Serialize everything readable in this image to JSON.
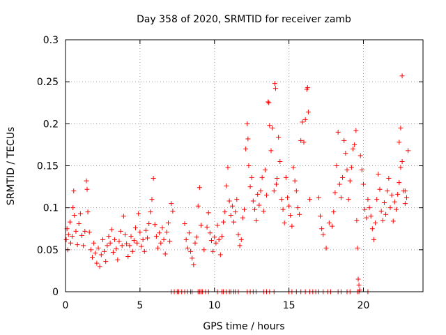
{
  "chart_data": {
    "type": "scatter",
    "title": "Day 358 of 2020, SRMTID for receiver zamb",
    "xlabel": "GPS time / hours",
    "ylabel": "SRMTID / TECUs",
    "xlim": [
      0,
      24
    ],
    "ylim": [
      0,
      0.3
    ],
    "grid": true,
    "marker": "+",
    "x_ticks": [
      {
        "value": 0,
        "label": "0"
      },
      {
        "value": 5,
        "label": "5"
      },
      {
        "value": 10,
        "label": "10"
      },
      {
        "value": 15,
        "label": "15"
      },
      {
        "value": 20,
        "label": "20"
      }
    ],
    "y_ticks": [
      {
        "value": 0,
        "label": "0"
      },
      {
        "value": 0.05,
        "label": "0.05"
      },
      {
        "value": 0.1,
        "label": "0.1"
      },
      {
        "value": 0.15,
        "label": "0.15"
      },
      {
        "value": 0.2,
        "label": "0.2"
      },
      {
        "value": 0.25,
        "label": "0.25"
      },
      {
        "value": 0.3,
        "label": "0.3"
      }
    ],
    "series": [
      {
        "name": "SRMTID",
        "color": "#ff0000",
        "points": [
          [
            0.05,
            0.062
          ],
          [
            0.1,
            0.075
          ],
          [
            0.15,
            0.05
          ],
          [
            0.2,
            0.068
          ],
          [
            0.3,
            0.083
          ],
          [
            0.35,
            0.058
          ],
          [
            0.45,
            0.066
          ],
          [
            0.5,
            0.1
          ],
          [
            0.55,
            0.12
          ],
          [
            0.6,
            0.091
          ],
          [
            0.7,
            0.072
          ],
          [
            0.8,
            0.056
          ],
          [
            0.9,
            0.081
          ],
          [
            1.0,
            0.093
          ],
          [
            1.1,
            0.067
          ],
          [
            1.2,
            0.055
          ],
          [
            1.3,
            0.072
          ],
          [
            1.4,
            0.132
          ],
          [
            1.45,
            0.122
          ],
          [
            1.5,
            0.095
          ],
          [
            1.6,
            0.071
          ],
          [
            1.7,
            0.05
          ],
          [
            1.8,
            0.041
          ],
          [
            1.9,
            0.058
          ],
          [
            2.0,
            0.046
          ],
          [
            2.1,
            0.034
          ],
          [
            2.2,
            0.052
          ],
          [
            2.3,
            0.03
          ],
          [
            2.4,
            0.044
          ],
          [
            2.5,
            0.062
          ],
          [
            2.6,
            0.048
          ],
          [
            2.7,
            0.036
          ],
          [
            2.8,
            0.055
          ],
          [
            2.9,
            0.066
          ],
          [
            3.0,
            0.058
          ],
          [
            3.1,
            0.074
          ],
          [
            3.2,
            0.047
          ],
          [
            3.3,
            0.062
          ],
          [
            3.4,
            0.051
          ],
          [
            3.5,
            0.038
          ],
          [
            3.6,
            0.06
          ],
          [
            3.7,
            0.072
          ],
          [
            3.8,
            0.055
          ],
          [
            3.9,
            0.09
          ],
          [
            4.0,
            0.068
          ],
          [
            4.1,
            0.057
          ],
          [
            4.2,
            0.042
          ],
          [
            4.3,
            0.055
          ],
          [
            4.4,
            0.066
          ],
          [
            4.5,
            0.048
          ],
          [
            4.6,
            0.061
          ],
          [
            4.7,
            0.076
          ],
          [
            4.8,
            0.058
          ],
          [
            4.9,
            0.093
          ],
          [
            5.0,
            0.071
          ],
          [
            5.1,
            0.054
          ],
          [
            5.2,
            0.062
          ],
          [
            5.3,
            0.048
          ],
          [
            5.4,
            0.073
          ],
          [
            5.5,
            0.064
          ],
          [
            5.6,
            0.081
          ],
          [
            5.7,
            0.095
          ],
          [
            5.8,
            0.11
          ],
          [
            5.9,
            0.135
          ],
          [
            6.0,
            0.08
          ],
          [
            6.1,
            0.066
          ],
          [
            6.2,
            0.052
          ],
          [
            6.3,
            0.07
          ],
          [
            6.4,
            0.058
          ],
          [
            6.5,
            0.076
          ],
          [
            6.6,
            0.062
          ],
          [
            6.7,
            0.045
          ],
          [
            6.8,
            0.071
          ],
          [
            6.9,
            0.082
          ],
          [
            7.0,
            0.06
          ],
          [
            7.1,
            0.105
          ],
          [
            7.2,
            0.096
          ],
          [
            8.0,
            0.081
          ],
          [
            8.1,
            0.062
          ],
          [
            8.2,
            0.052
          ],
          [
            8.3,
            0.07
          ],
          [
            8.4,
            0.048
          ],
          [
            8.5,
            0.04
          ],
          [
            8.6,
            0.032
          ],
          [
            8.7,
            0.058
          ],
          [
            8.8,
            0.065
          ],
          [
            8.9,
            0.102
          ],
          [
            9.0,
            0.124
          ],
          [
            9.1,
            0.079
          ],
          [
            9.3,
            0.05
          ],
          [
            9.5,
            0.077
          ],
          [
            9.6,
            0.094
          ],
          [
            9.7,
            0.07
          ],
          [
            9.8,
            0.061
          ],
          [
            9.9,
            0.048
          ],
          [
            10.0,
            0.065
          ],
          [
            10.1,
            0.058
          ],
          [
            10.2,
            0.079
          ],
          [
            10.3,
            0.062
          ],
          [
            10.4,
            0.044
          ],
          [
            10.5,
            0.066
          ],
          [
            10.6,
            0.083
          ],
          [
            10.7,
            0.095
          ],
          [
            10.8,
            0.126
          ],
          [
            10.9,
            0.148
          ],
          [
            11.0,
            0.108
          ],
          [
            11.1,
            0.091
          ],
          [
            11.2,
            0.102
          ],
          [
            11.3,
            0.083
          ],
          [
            11.4,
            0.095
          ],
          [
            11.5,
            0.11
          ],
          [
            11.6,
            0.068
          ],
          [
            11.7,
            0.055
          ],
          [
            11.8,
            0.062
          ],
          [
            11.9,
            0.088
          ],
          [
            12.0,
            0.098
          ],
          [
            12.1,
            0.17
          ],
          [
            12.2,
            0.2
          ],
          [
            12.25,
            0.182
          ],
          [
            12.3,
            0.15
          ],
          [
            12.4,
            0.125
          ],
          [
            12.5,
            0.136
          ],
          [
            12.6,
            0.108
          ],
          [
            12.7,
            0.098
          ],
          [
            12.8,
            0.085
          ],
          [
            12.9,
            0.116
          ],
          [
            13.0,
            0.103
          ],
          [
            13.1,
            0.12
          ],
          [
            13.2,
            0.136
          ],
          [
            13.3,
            0.096
          ],
          [
            13.4,
            0.145
          ],
          [
            13.5,
            0.115
          ],
          [
            13.6,
            0.226
          ],
          [
            13.65,
            0.225
          ],
          [
            13.7,
            0.198
          ],
          [
            13.8,
            0.168
          ],
          [
            13.9,
            0.195
          ],
          [
            14.0,
            0.12
          ],
          [
            14.05,
            0.248
          ],
          [
            14.1,
            0.242
          ],
          [
            14.15,
            0.128
          ],
          [
            14.2,
            0.135
          ],
          [
            14.3,
            0.184
          ],
          [
            14.4,
            0.155
          ],
          [
            14.5,
            0.11
          ],
          [
            14.6,
            0.098
          ],
          [
            14.7,
            0.082
          ],
          [
            14.8,
            0.136
          ],
          [
            14.9,
            0.112
          ],
          [
            15.0,
            0.102
          ],
          [
            15.1,
            0.091
          ],
          [
            15.2,
            0.078
          ],
          [
            15.3,
            0.148
          ],
          [
            15.4,
            0.132
          ],
          [
            15.5,
            0.12
          ],
          [
            15.6,
            0.1
          ],
          [
            15.7,
            0.092
          ],
          [
            15.8,
            0.18
          ],
          [
            15.9,
            0.202
          ],
          [
            16.0,
            0.178
          ],
          [
            16.1,
            0.205
          ],
          [
            16.2,
            0.241
          ],
          [
            16.25,
            0.243
          ],
          [
            16.3,
            0.214
          ],
          [
            16.4,
            0.11
          ],
          [
            17.0,
            0.112
          ],
          [
            17.1,
            0.09
          ],
          [
            17.2,
            0.075
          ],
          [
            17.3,
            0.068
          ],
          [
            17.5,
            0.052
          ],
          [
            17.7,
            0.082
          ],
          [
            17.9,
            0.078
          ],
          [
            18.0,
            0.095
          ],
          [
            18.1,
            0.118
          ],
          [
            18.2,
            0.15
          ],
          [
            18.3,
            0.19
          ],
          [
            18.4,
            0.128
          ],
          [
            18.5,
            0.112
          ],
          [
            18.6,
            0.136
          ],
          [
            18.7,
            0.18
          ],
          [
            18.8,
            0.165
          ],
          [
            18.9,
            0.145
          ],
          [
            19.0,
            0.11
          ],
          [
            19.1,
            0.132
          ],
          [
            19.2,
            0.148
          ],
          [
            19.3,
            0.17
          ],
          [
            19.4,
            0.175
          ],
          [
            19.5,
            0.192
          ],
          [
            19.55,
            0.085
          ],
          [
            19.6,
            0.052
          ],
          [
            19.65,
            0.015
          ],
          [
            19.7,
            0.008
          ],
          [
            19.75,
            0.002
          ],
          [
            19.8,
            0.162
          ],
          [
            19.9,
            0.145
          ],
          [
            20.0,
            0.128
          ],
          [
            20.1,
            0.098
          ],
          [
            20.2,
            0.088
          ],
          [
            20.3,
            0.11
          ],
          [
            20.4,
            0.1
          ],
          [
            20.5,
            0.09
          ],
          [
            20.6,
            0.075
          ],
          [
            20.7,
            0.062
          ],
          [
            20.8,
            0.082
          ],
          [
            20.9,
            0.11
          ],
          [
            21.0,
            0.14
          ],
          [
            21.1,
            0.122
          ],
          [
            21.2,
            0.096
          ],
          [
            21.3,
            0.085
          ],
          [
            21.4,
            0.106
          ],
          [
            21.5,
            0.092
          ],
          [
            21.6,
            0.12
          ],
          [
            21.7,
            0.135
          ],
          [
            21.8,
            0.1
          ],
          [
            21.9,
            0.115
          ],
          [
            22.0,
            0.084
          ],
          [
            22.1,
            0.107
          ],
          [
            22.2,
            0.098
          ],
          [
            22.3,
            0.116
          ],
          [
            22.4,
            0.13
          ],
          [
            22.5,
            0.148
          ],
          [
            22.6,
            0.155
          ],
          [
            22.7,
            0.12
          ],
          [
            22.8,
            0.105
          ],
          [
            22.9,
            0.112
          ],
          [
            23.0,
            0.168
          ],
          [
            22.6,
            0.257
          ],
          [
            22.5,
            0.195
          ],
          [
            22.4,
            0.178
          ],
          [
            22.8,
            0.12
          ]
        ],
        "zero_points": [
          7.1,
          7.3,
          7.5,
          7.6,
          7.8,
          8.0,
          8.2,
          8.4,
          8.5,
          8.9,
          9.0,
          9.1,
          9.2,
          9.4,
          9.6,
          10.2,
          10.5,
          10.6,
          10.8,
          11.0,
          11.1,
          11.3,
          11.4,
          11.6,
          12.2,
          12.4,
          12.6,
          12.8,
          13.3,
          13.5,
          13.7,
          14.0,
          15.0,
          15.2,
          15.5,
          15.8,
          16.1,
          16.4,
          16.6,
          16.8,
          17.0,
          17.3,
          17.6,
          17.8,
          18.3,
          18.5,
          18.9,
          19.1,
          19.6,
          19.7,
          20.3
        ]
      }
    ]
  }
}
